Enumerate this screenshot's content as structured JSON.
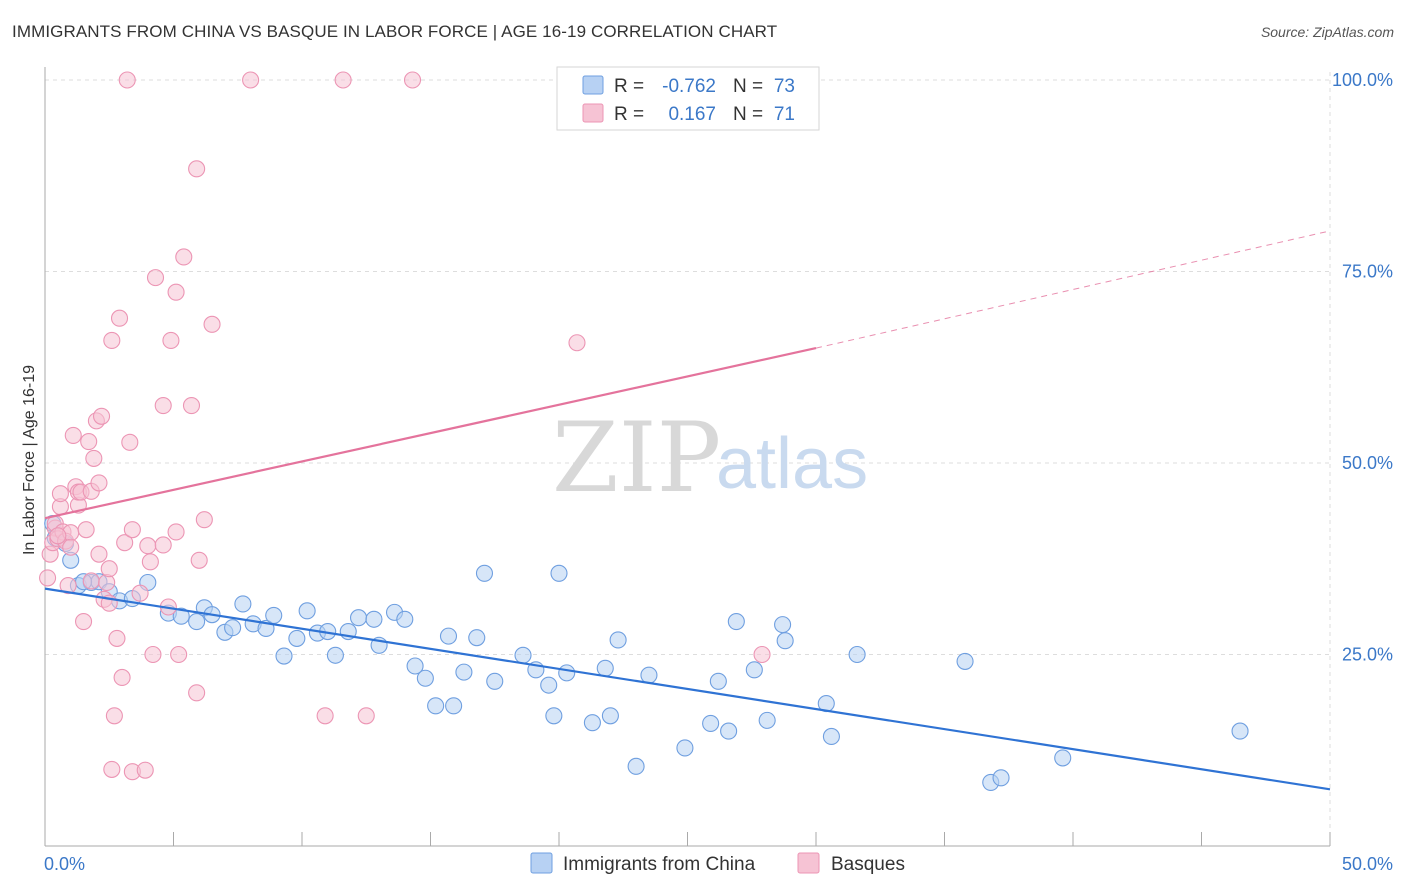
{
  "title": "IMMIGRANTS FROM CHINA VS BASQUE IN LABOR FORCE | AGE 16-19 CORRELATION CHART",
  "source": "Source: ZipAtlas.com",
  "watermark": {
    "zip": "ZIP",
    "atlas": "atlas"
  },
  "colors": {
    "china": "#6f9fe0",
    "china_fill": "#b7d1f3",
    "china_line": "#2f73d4",
    "basque": "#ec95b4",
    "basque_fill": "#f6c3d4",
    "basque_line": "#e4739c",
    "axis_text": "#3b78c8",
    "grid": "#dddddd"
  },
  "legend_top": {
    "rows": [
      {
        "r_label": "R =",
        "r_value": "-0.762",
        "n_label": "N =",
        "n_value": "73"
      },
      {
        "r_label": "R =",
        "r_value": "0.167",
        "n_label": "N =",
        "n_value": "71"
      }
    ]
  },
  "chart_data": {
    "type": "scatter",
    "title": "IMMIGRANTS FROM CHINA VS BASQUE IN LABOR FORCE | AGE 16-19 CORRELATION CHART",
    "xlabel": "",
    "ylabel": "In Labor Force | Age 16-19",
    "xlim": [
      0,
      50
    ],
    "ylim": [
      0,
      104
    ],
    "x_tick_labels": [
      "0.0%",
      "50.0%"
    ],
    "y_tick_labels": [
      "25.0%",
      "50.0%",
      "75.0%",
      "100.0%"
    ],
    "y_ticks": [
      25,
      50,
      75,
      100
    ],
    "grid": true,
    "legend_position": "bottom",
    "series": [
      {
        "name": "Immigrants from China",
        "r": -0.762,
        "n": 73,
        "trend": {
          "x0": 0,
          "y0": 33.6,
          "x1": 50,
          "y1": 7.4
        },
        "points": [
          [
            0.3,
            42.1
          ],
          [
            0.4,
            40.2
          ],
          [
            0.8,
            39.5
          ],
          [
            1.0,
            37.3
          ],
          [
            1.3,
            34.0
          ],
          [
            1.8,
            34.4
          ],
          [
            2.1,
            34.5
          ],
          [
            2.5,
            33.2
          ],
          [
            2.9,
            32.0
          ],
          [
            3.4,
            32.3
          ],
          [
            4.0,
            34.4
          ],
          [
            4.8,
            30.4
          ],
          [
            5.3,
            30.0
          ],
          [
            5.9,
            29.3
          ],
          [
            6.2,
            31.1
          ],
          [
            6.5,
            30.2
          ],
          [
            7.0,
            27.9
          ],
          [
            7.3,
            28.5
          ],
          [
            7.7,
            31.6
          ],
          [
            8.1,
            29.0
          ],
          [
            8.6,
            28.4
          ],
          [
            8.9,
            30.1
          ],
          [
            9.3,
            24.8
          ],
          [
            9.8,
            27.1
          ],
          [
            10.2,
            30.7
          ],
          [
            10.6,
            27.8
          ],
          [
            11.0,
            28.0
          ],
          [
            11.3,
            24.9
          ],
          [
            11.8,
            28.0
          ],
          [
            12.2,
            29.8
          ],
          [
            12.8,
            29.6
          ],
          [
            13.0,
            26.2
          ],
          [
            13.6,
            30.5
          ],
          [
            14.0,
            29.6
          ],
          [
            14.4,
            23.5
          ],
          [
            14.8,
            21.9
          ],
          [
            15.2,
            18.3
          ],
          [
            15.7,
            27.4
          ],
          [
            15.9,
            18.3
          ],
          [
            16.3,
            22.7
          ],
          [
            16.8,
            27.2
          ],
          [
            17.1,
            35.6
          ],
          [
            17.5,
            21.5
          ],
          [
            18.6,
            24.9
          ],
          [
            19.1,
            23.0
          ],
          [
            19.6,
            21.0
          ],
          [
            19.8,
            17.0
          ],
          [
            20.0,
            35.6
          ],
          [
            20.3,
            22.6
          ],
          [
            21.3,
            16.1
          ],
          [
            21.8,
            23.2
          ],
          [
            22.3,
            26.9
          ],
          [
            22.0,
            17.0
          ],
          [
            23.0,
            10.4
          ],
          [
            23.5,
            22.3
          ],
          [
            24.9,
            12.8
          ],
          [
            25.9,
            16.0
          ],
          [
            26.2,
            21.5
          ],
          [
            26.6,
            15.0
          ],
          [
            26.9,
            29.3
          ],
          [
            27.6,
            23.0
          ],
          [
            28.1,
            16.4
          ],
          [
            28.7,
            28.9
          ],
          [
            28.8,
            26.8
          ],
          [
            30.4,
            18.6
          ],
          [
            30.6,
            14.3
          ],
          [
            31.6,
            25.0
          ],
          [
            35.8,
            24.1
          ],
          [
            36.8,
            8.3
          ],
          [
            37.2,
            8.9
          ],
          [
            39.6,
            11.5
          ],
          [
            46.5,
            15.0
          ],
          [
            1.5,
            34.5
          ]
        ]
      },
      {
        "name": "Basques",
        "r": 0.167,
        "n": 71,
        "trend": {
          "x0": 0,
          "y0": 42.8,
          "x1": 30,
          "y1": 65.0,
          "x1_dashed": 50,
          "y1_dashed": 80.3
        },
        "points": [
          [
            0.1,
            35.0
          ],
          [
            0.2,
            38.1
          ],
          [
            0.3,
            39.6
          ],
          [
            0.4,
            41.5
          ],
          [
            0.4,
            42.1
          ],
          [
            0.5,
            40.1
          ],
          [
            0.6,
            44.3
          ],
          [
            0.6,
            46.0
          ],
          [
            0.7,
            41.0
          ],
          [
            0.8,
            39.8
          ],
          [
            0.9,
            34.0
          ],
          [
            1.0,
            40.9
          ],
          [
            1.1,
            53.6
          ],
          [
            1.2,
            46.9
          ],
          [
            1.3,
            44.5
          ],
          [
            1.3,
            46.2
          ],
          [
            1.4,
            46.2
          ],
          [
            1.5,
            29.3
          ],
          [
            1.6,
            41.3
          ],
          [
            1.7,
            52.8
          ],
          [
            1.8,
            46.3
          ],
          [
            1.8,
            34.6
          ],
          [
            1.9,
            50.6
          ],
          [
            2.0,
            55.5
          ],
          [
            2.1,
            38.1
          ],
          [
            2.1,
            47.4
          ],
          [
            2.2,
            56.1
          ],
          [
            2.3,
            32.2
          ],
          [
            2.4,
            34.4
          ],
          [
            2.5,
            36.2
          ],
          [
            2.6,
            66.0
          ],
          [
            2.6,
            10.0
          ],
          [
            2.7,
            17.0
          ],
          [
            2.8,
            27.1
          ],
          [
            2.9,
            68.9
          ],
          [
            3.0,
            22.0
          ],
          [
            3.1,
            39.6
          ],
          [
            3.2,
            100.0
          ],
          [
            3.3,
            52.7
          ],
          [
            3.4,
            41.3
          ],
          [
            3.4,
            9.7
          ],
          [
            3.7,
            33.0
          ],
          [
            3.9,
            9.9
          ],
          [
            4.0,
            39.2
          ],
          [
            4.1,
            37.1
          ],
          [
            4.2,
            25.0
          ],
          [
            4.3,
            74.2
          ],
          [
            4.6,
            57.5
          ],
          [
            4.6,
            39.3
          ],
          [
            4.8,
            31.2
          ],
          [
            4.9,
            66.0
          ],
          [
            5.1,
            41.0
          ],
          [
            5.1,
            72.3
          ],
          [
            5.2,
            25.0
          ],
          [
            5.4,
            76.9
          ],
          [
            5.7,
            57.5
          ],
          [
            5.9,
            88.4
          ],
          [
            5.9,
            20.0
          ],
          [
            6.0,
            37.3
          ],
          [
            6.2,
            42.6
          ],
          [
            6.5,
            68.1
          ],
          [
            8.0,
            100.0
          ],
          [
            10.9,
            17.0
          ],
          [
            11.6,
            100.0
          ],
          [
            12.5,
            17.0
          ],
          [
            14.3,
            100.0
          ],
          [
            20.7,
            65.7
          ],
          [
            27.9,
            25.0
          ],
          [
            2.5,
            31.7
          ],
          [
            0.5,
            40.5
          ],
          [
            1.0,
            39.0
          ]
        ]
      }
    ]
  },
  "legend_bottom": {
    "items": [
      "Immigrants from China",
      "Basques"
    ]
  }
}
